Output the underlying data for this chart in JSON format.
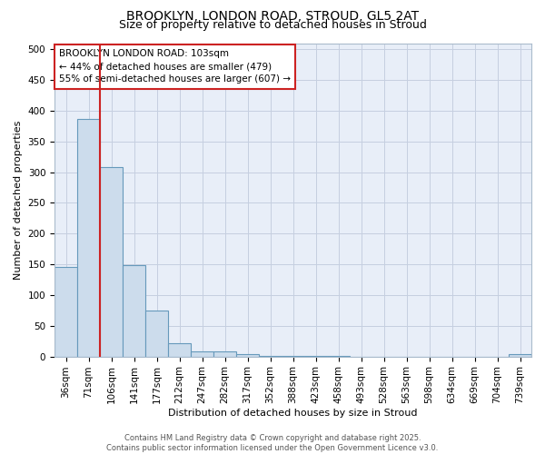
{
  "title1": "BROOKLYN, LONDON ROAD, STROUD, GL5 2AT",
  "title2": "Size of property relative to detached houses in Stroud",
  "xlabel": "Distribution of detached houses by size in Stroud",
  "ylabel": "Number of detached properties",
  "categories": [
    "36sqm",
    "71sqm",
    "106sqm",
    "141sqm",
    "177sqm",
    "212sqm",
    "247sqm",
    "282sqm",
    "317sqm",
    "352sqm",
    "388sqm",
    "423sqm",
    "458sqm",
    "493sqm",
    "528sqm",
    "563sqm",
    "598sqm",
    "634sqm",
    "669sqm",
    "704sqm",
    "739sqm"
  ],
  "values": [
    146,
    386,
    308,
    149,
    75,
    22,
    9,
    9,
    4,
    1,
    1,
    1,
    1,
    0,
    0,
    0,
    0,
    0,
    0,
    0,
    4
  ],
  "bar_color": "#ccdcec",
  "bar_edge_color": "#6699bb",
  "vline_x": 2.0,
  "vline_color": "#cc2222",
  "annotation_text": "BROOKLYN LONDON ROAD: 103sqm\n← 44% of detached houses are smaller (479)\n55% of semi-detached houses are larger (607) →",
  "annotation_box_facecolor": "white",
  "annotation_box_edgecolor": "#cc2222",
  "ylim": [
    0,
    510
  ],
  "yticks": [
    0,
    50,
    100,
    150,
    200,
    250,
    300,
    350,
    400,
    450,
    500
  ],
  "footer1": "Contains HM Land Registry data © Crown copyright and database right 2025.",
  "footer2": "Contains public sector information licensed under the Open Government Licence v3.0.",
  "background_color": "#ffffff",
  "plot_bg_color": "#e8eef8",
  "grid_color": "#c5cfe0",
  "title1_fontsize": 10,
  "title2_fontsize": 9,
  "xlabel_fontsize": 8,
  "ylabel_fontsize": 8,
  "tick_fontsize": 7.5,
  "footer_fontsize": 6,
  "ann_fontsize": 7.5
}
